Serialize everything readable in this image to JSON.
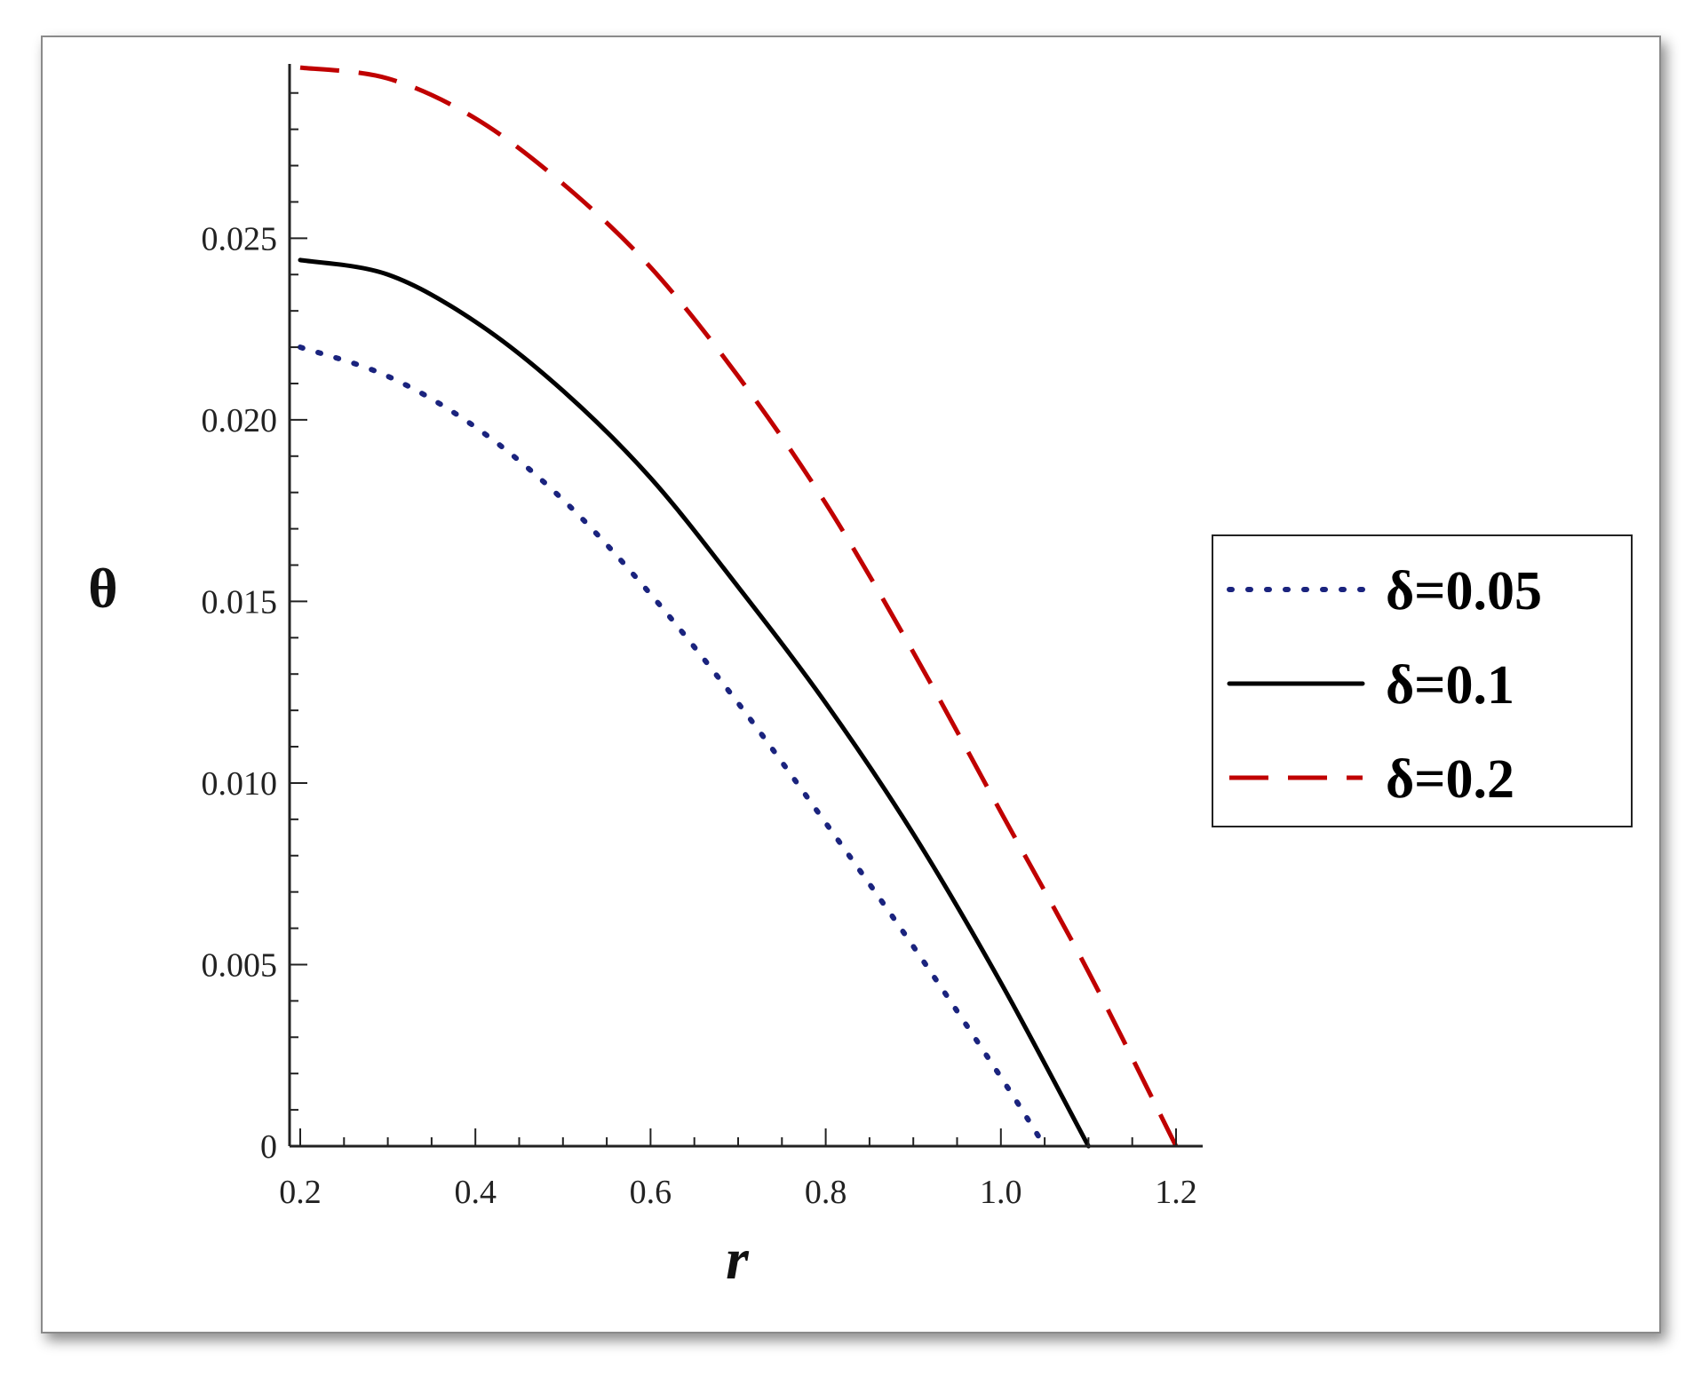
{
  "chart_data": {
    "type": "line",
    "xlabel": "r",
    "ylabel": "θ",
    "xlim": [
      0.2,
      1.2
    ],
    "ylim": [
      0,
      0.0298
    ],
    "x_ticks": [
      "0.2",
      "0.4",
      "0.6",
      "0.8",
      "1.0",
      "1.2"
    ],
    "y_ticks": [
      "0",
      "0.005",
      "0.010",
      "0.015",
      "0.020",
      "0.025"
    ],
    "grid": false,
    "legend_position": "right",
    "series": [
      {
        "name": "δ=0.05",
        "style": "dotted",
        "color": "#1a237e",
        "x": [
          0.2,
          0.3,
          0.4,
          0.5,
          0.6,
          0.7,
          0.8,
          0.9,
          1.0,
          1.05
        ],
        "y": [
          0.022,
          0.0212,
          0.0198,
          0.0178,
          0.0152,
          0.0122,
          0.0089,
          0.0055,
          0.0019,
          0.0
        ]
      },
      {
        "name": "δ=0.1",
        "style": "solid",
        "color": "#000000",
        "x": [
          0.2,
          0.3,
          0.4,
          0.5,
          0.6,
          0.7,
          0.8,
          0.9,
          1.0,
          1.1
        ],
        "y": [
          0.0244,
          0.024,
          0.0227,
          0.0208,
          0.0184,
          0.0154,
          0.0122,
          0.0086,
          0.0045,
          0.0
        ]
      },
      {
        "name": "δ=0.2",
        "style": "dashed",
        "color": "#c00000",
        "x": [
          0.2,
          0.3,
          0.4,
          0.5,
          0.6,
          0.7,
          0.8,
          0.9,
          1.0,
          1.1,
          1.2
        ],
        "y": [
          0.0297,
          0.0294,
          0.0283,
          0.0265,
          0.0242,
          0.0212,
          0.0177,
          0.0136,
          0.0092,
          0.0048,
          0.0
        ]
      }
    ]
  }
}
